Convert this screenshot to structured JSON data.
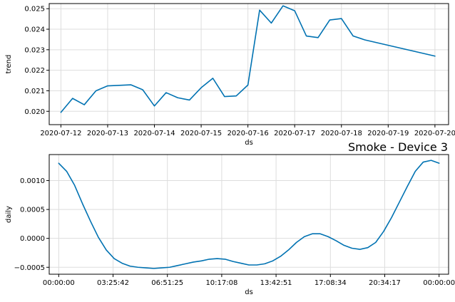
{
  "colors": {
    "line": "#0072B2"
  },
  "figure_title": "Smoke - Device 3",
  "chart_data": [
    {
      "type": "line",
      "xlabel": "ds",
      "ylabel": "trend",
      "x_scale": "date",
      "grid": true,
      "xlim": [
        "2020-07-11 18:00",
        "2020-07-20 07:00"
      ],
      "ylim": [
        0.01935,
        0.02525
      ],
      "xticks": [
        "2020-07-12",
        "2020-07-13",
        "2020-07-14",
        "2020-07-15",
        "2020-07-16",
        "2020-07-17",
        "2020-07-18",
        "2020-07-19",
        "2020-07-20"
      ],
      "yticks": [
        0.02,
        0.021,
        0.022,
        0.023,
        0.024,
        0.025
      ],
      "ytick_labels": [
        "0.020",
        "0.021",
        "0.022",
        "0.023",
        "0.024",
        "0.025"
      ],
      "series": [
        {
          "x": [
            "2020-07-12 00:00",
            "2020-07-12 06:00",
            "2020-07-12 12:00",
            "2020-07-12 18:00",
            "2020-07-13 00:00",
            "2020-07-13 12:00",
            "2020-07-13 18:00",
            "2020-07-14 00:00",
            "2020-07-14 06:00",
            "2020-07-14 12:00",
            "2020-07-14 18:00",
            "2020-07-15 00:00",
            "2020-07-15 06:00",
            "2020-07-15 12:00",
            "2020-07-15 18:00",
            "2020-07-16 00:00",
            "2020-07-16 06:00",
            "2020-07-16 12:00",
            "2020-07-16 18:00",
            "2020-07-17 00:00",
            "2020-07-17 06:00",
            "2020-07-17 12:00",
            "2020-07-17 18:00",
            "2020-07-18 00:00",
            "2020-07-18 06:00",
            "2020-07-18 12:00",
            "2020-07-20 00:00"
          ],
          "y": [
            0.01995,
            0.02063,
            0.02032,
            0.021,
            0.02124,
            0.02129,
            0.02105,
            0.02026,
            0.02091,
            0.02066,
            0.02055,
            0.02115,
            0.02161,
            0.02072,
            0.02075,
            0.02128,
            0.02493,
            0.0243,
            0.02514,
            0.0249,
            0.02367,
            0.02359,
            0.02445,
            0.02452,
            0.02367,
            0.02348,
            0.02269
          ]
        }
      ]
    },
    {
      "type": "line",
      "xlabel": "ds",
      "ylabel": "daily",
      "grid": true,
      "xlim": [
        -0.6,
        24.6
      ],
      "ylim": [
        -0.00062,
        0.00145
      ],
      "xticks": [
        0,
        3.4283,
        6.8569,
        10.2856,
        13.7142,
        17.1428,
        20.5714,
        24
      ],
      "xtick_labels": [
        "00:00:00",
        "03:25:42",
        "06:51:25",
        "10:17:08",
        "13:42:51",
        "17:08:34",
        "20:34:17",
        "00:00:00"
      ],
      "yticks": [
        -0.0005,
        0.0,
        0.0005,
        0.001
      ],
      "ytick_labels": [
        "−0.0005",
        "0.0000",
        "0.0005",
        "0.0010"
      ],
      "series": [
        {
          "x": [
            0,
            0.5,
            1,
            1.5,
            2,
            2.5,
            3,
            3.5,
            4,
            4.5,
            5,
            5.5,
            6,
            6.5,
            7,
            7.5,
            8,
            8.5,
            9,
            9.5,
            10,
            10.5,
            11,
            11.5,
            12,
            12.5,
            13,
            13.5,
            14,
            14.5,
            15,
            15.5,
            16,
            16.5,
            17,
            17.5,
            18,
            18.5,
            19,
            19.5,
            20,
            20.5,
            21,
            21.5,
            22,
            22.5,
            23,
            23.5,
            24
          ],
          "y": [
            0.0013,
            0.00116,
            0.00092,
            0.0006,
            0.0003,
            2e-05,
            -0.0002,
            -0.00035,
            -0.00043,
            -0.00048,
            -0.0005,
            -0.00051,
            -0.00052,
            -0.00051,
            -0.0005,
            -0.00047,
            -0.00044,
            -0.00041,
            -0.00039,
            -0.00036,
            -0.00035,
            -0.00036,
            -0.0004,
            -0.00043,
            -0.00046,
            -0.00046,
            -0.00044,
            -0.00039,
            -0.00031,
            -0.0002,
            -7e-05,
            3e-05,
            8e-05,
            8e-05,
            3e-05,
            -4e-05,
            -0.00012,
            -0.00017,
            -0.00019,
            -0.00016,
            -7e-05,
            0.00012,
            0.00036,
            0.00063,
            0.0009,
            0.00116,
            0.00132,
            0.00135,
            0.0013
          ]
        }
      ]
    }
  ]
}
